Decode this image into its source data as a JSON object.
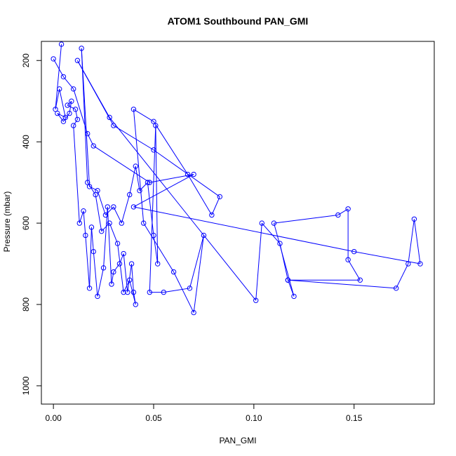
{
  "chart_data": {
    "type": "scatter",
    "title": "ATOM1 Southbound PAN_GMI",
    "xlabel": "PAN_GMI",
    "ylabel": "Pressure (mbar)",
    "xlim": [
      -0.006,
      0.19
    ],
    "ylim": [
      1045,
      153
    ],
    "y_inverted": true,
    "x_ticks": [
      0.0,
      0.05,
      0.1,
      0.15
    ],
    "x_tick_labels": [
      "0.00",
      "0.05",
      "0.10",
      "0.15"
    ],
    "y_ticks": [
      200,
      400,
      600,
      800,
      1000
    ],
    "y_tick_labels": [
      "200",
      "400",
      "600",
      "800",
      "1000"
    ],
    "grid": false,
    "legend": "none",
    "series": [
      {
        "color": "#0000ff",
        "mode": "lines+markers",
        "x": [
          0.004,
          0.001,
          0.003,
          0.006,
          0.002,
          0.005,
          0.008,
          0.009,
          0.007,
          0.011,
          0.012,
          0.01,
          0.013,
          0.015,
          0.016,
          0.018,
          0.019,
          0.02,
          0.022,
          0.025,
          0.027,
          0.029,
          0.03,
          0.033,
          0.035,
          0.037,
          0.039,
          0.04,
          0.041,
          0.038,
          0.035,
          0.032,
          0.028,
          0.024,
          0.021,
          0.017,
          0.014,
          0.018,
          0.022,
          0.026,
          0.03,
          0.034,
          0.038,
          0.041,
          0.043,
          0.047,
          0.05,
          0.052,
          0.051,
          0.048,
          0.055,
          0.068,
          0.075,
          0.07,
          0.06,
          0.045,
          0.04,
          0.05,
          0.067,
          0.079,
          0.083,
          0.05,
          0.03,
          0.012,
          0.028,
          0.101,
          0.104,
          0.113,
          0.117,
          0.12,
          0.11,
          0.142,
          0.147,
          0.147,
          0.153,
          0.117,
          0.171,
          0.177,
          0.18,
          0.183,
          0.15,
          0.04,
          0.07,
          0.048,
          0.02,
          0.017,
          0.01,
          0.005,
          0.0
        ],
        "y": [
          160,
          320,
          270,
          340,
          330,
          350,
          330,
          300,
          310,
          320,
          345,
          360,
          600,
          570,
          630,
          760,
          610,
          670,
          780,
          710,
          560,
          750,
          720,
          700,
          675,
          770,
          700,
          770,
          800,
          740,
          770,
          650,
          600,
          620,
          530,
          500,
          170,
          510,
          520,
          580,
          560,
          600,
          530,
          460,
          520,
          500,
          630,
          700,
          360,
          770,
          770,
          760,
          630,
          820,
          720,
          600,
          320,
          350,
          480,
          580,
          535,
          420,
          360,
          200,
          340,
          790,
          600,
          650,
          740,
          780,
          600,
          580,
          565,
          690,
          740,
          740,
          760,
          700,
          590,
          700,
          670,
          560,
          480,
          500,
          410,
          380,
          270,
          240,
          196
        ]
      }
    ]
  }
}
